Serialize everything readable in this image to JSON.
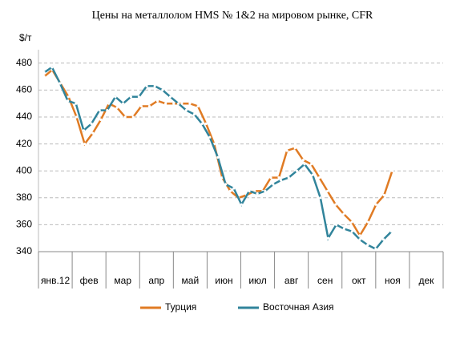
{
  "chart_data": {
    "type": "line",
    "title": "Цены на металлолом HMS № 1&2 на мировом рынке, CFR",
    "y_label": "$/т",
    "categories": [
      "янв.12",
      "фев",
      "мар",
      "апр",
      "май",
      "июн",
      "июл",
      "авг",
      "сен",
      "окт",
      "ноя",
      "дек"
    ],
    "xlim": [
      0,
      12
    ],
    "ylim": [
      340,
      490
    ],
    "yticks": [
      340,
      360,
      380,
      400,
      420,
      440,
      460,
      480
    ],
    "grid": true,
    "legend": "bottom",
    "series": [
      {
        "name": "Турция",
        "color": "#e07b24",
        "x": [
          0.17,
          0.41,
          0.65,
          0.89,
          1.13,
          1.37,
          1.61,
          1.85,
          2.09,
          2.33,
          2.57,
          2.81,
          3.05,
          3.29,
          3.53,
          3.77,
          4.01,
          4.25,
          4.49,
          4.73,
          4.97,
          5.21,
          5.45,
          5.69,
          5.93,
          6.17,
          6.41,
          6.65,
          6.89,
          7.13,
          7.37,
          7.61,
          7.85,
          8.09,
          8.33,
          8.57,
          8.81,
          9.05,
          9.29,
          9.53,
          9.77,
          10.01,
          10.25,
          10.49
        ],
        "values": [
          470,
          475,
          465,
          455,
          440,
          420,
          428,
          438,
          450,
          447,
          440,
          440,
          448,
          448,
          452,
          450,
          450,
          450,
          450,
          448,
          435,
          420,
          395,
          385,
          380,
          382,
          385,
          385,
          395,
          395,
          415,
          417,
          408,
          405,
          395,
          385,
          375,
          368,
          362,
          352,
          362,
          375,
          382,
          400
        ]
      },
      {
        "name": "Восточная Азия",
        "color": "#31849b",
        "x": [
          0.17,
          0.4,
          0.64,
          0.87,
          1.11,
          1.34,
          1.57,
          1.81,
          2.04,
          2.28,
          2.51,
          2.74,
          2.98,
          3.21,
          3.45,
          3.68,
          3.91,
          4.15,
          4.38,
          4.62,
          4.85,
          5.08,
          5.32,
          5.55,
          5.79,
          6.02,
          6.25,
          6.49,
          6.72,
          6.96,
          7.19,
          7.42,
          7.66,
          7.89,
          8.13,
          8.36,
          8.59,
          8.83,
          9.06,
          9.3,
          9.53,
          9.76,
          10.0,
          10.23,
          10.47
        ],
        "values": [
          473,
          477,
          465,
          452,
          450,
          430,
          435,
          445,
          445,
          455,
          450,
          455,
          455,
          463,
          463,
          460,
          455,
          450,
          445,
          442,
          435,
          425,
          410,
          390,
          387,
          375,
          385,
          383,
          385,
          390,
          393,
          395,
          400,
          405,
          397,
          380,
          350,
          360,
          357,
          355,
          349,
          345,
          342,
          349,
          355
        ]
      }
    ]
  }
}
